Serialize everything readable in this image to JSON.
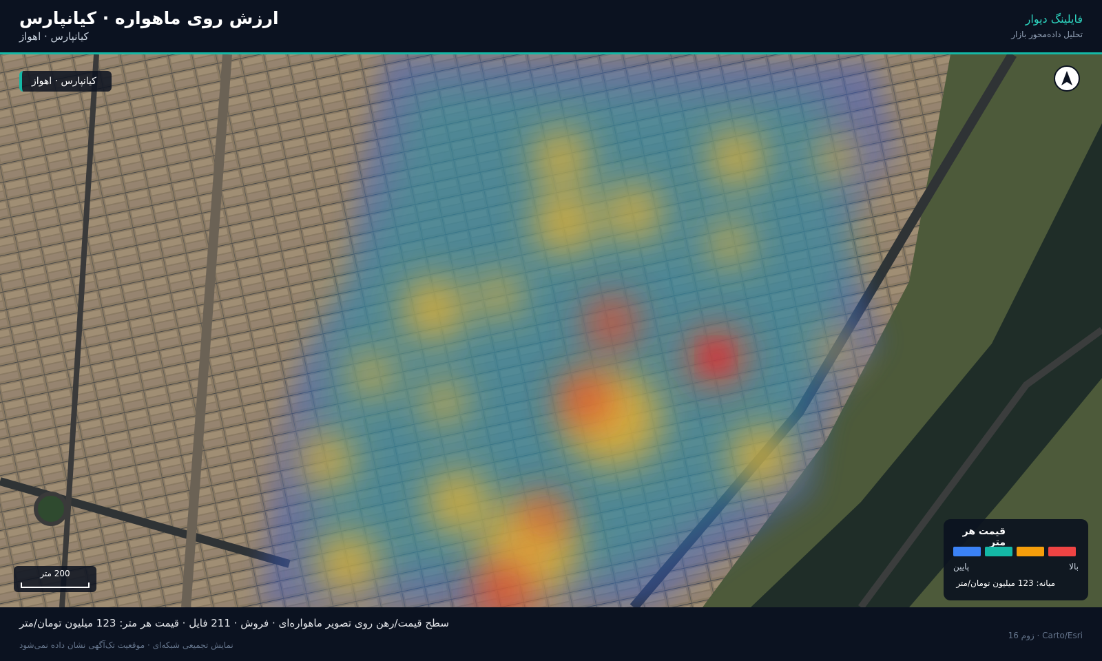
{
  "header": {
    "title": "ارزش روی ماهواره · کیانپارس",
    "subtitle": "کیانپارس · اهواز",
    "brand": "فایلینگ دیوار",
    "brand_tagline": "تحلیل داده‌محور بازار"
  },
  "map": {
    "area_label": "کیانپارس · اهواز",
    "scale_label": "200 متر"
  },
  "legend": {
    "title": "قیمت هر متر",
    "colors": [
      "#3b82f6",
      "#14b8a6",
      "#f59e0b",
      "#ef4444"
    ],
    "low_label": "پایین",
    "high_label": "بالا",
    "median": "میانه: 123 میلیون تومان/متر"
  },
  "footer": {
    "summary": "سطح قیمت/رهن روی تصویر ماهواره‌ای · فروش · 211 فایل · قیمت هر متر: 123 میلیون تومان/متر",
    "note": "نمایش تجمیعی شبکه‌ای · موقعیت تک‌آگهی نشان داده نمی‌شود",
    "attribution": "زوم 16 · Carto/Esri"
  }
}
